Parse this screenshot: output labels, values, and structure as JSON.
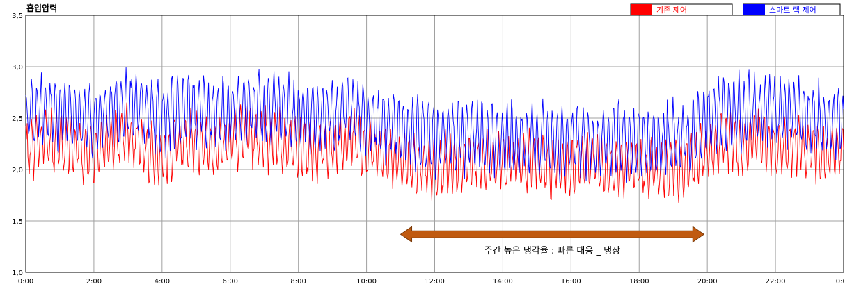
{
  "chart_data": {
    "type": "line",
    "title": "흡입압력",
    "xlabel": "",
    "ylabel": "",
    "x_unit": "hours",
    "xlim": [
      0,
      24
    ],
    "ylim": [
      1.0,
      3.5
    ],
    "y_ticks": [
      1.0,
      1.5,
      2.0,
      2.5,
      3.0,
      3.5
    ],
    "y_tick_labels": [
      "1,0",
      "1,5",
      "2,0",
      "2,5",
      "3,0",
      "3,5"
    ],
    "x_ticks": [
      0,
      2,
      4,
      6,
      8,
      10,
      12,
      14,
      16,
      18,
      20,
      22,
      24
    ],
    "x_tick_labels": [
      "0:00",
      "2:00",
      "4:00",
      "6:00",
      "8:00",
      "10:00",
      "12:00",
      "14:00",
      "16:00",
      "18:00",
      "20:00",
      "22:00",
      "0:00"
    ],
    "grid": true,
    "legend_position": "top-right",
    "series": [
      {
        "name": "기존 제어",
        "color": "#ff0000",
        "x": [
          0,
          0.5,
          1,
          1.5,
          2,
          2.5,
          3,
          3.5,
          4,
          4.5,
          5,
          5.5,
          6,
          6.5,
          7,
          7.5,
          8,
          8.5,
          9,
          9.5,
          10,
          10.5,
          11,
          11.5,
          12,
          12.5,
          13,
          13.5,
          14,
          14.5,
          15,
          15.5,
          16,
          16.5,
          17,
          17.5,
          18,
          18.5,
          19,
          19.5,
          20,
          20.5,
          21,
          21.5,
          22,
          22.5,
          23,
          23.5,
          24
        ],
        "values": [
          2.2,
          2.3,
          2.25,
          2.2,
          2.15,
          2.3,
          2.35,
          2.2,
          2.1,
          2.25,
          2.3,
          2.2,
          2.3,
          2.35,
          2.3,
          2.25,
          2.2,
          2.2,
          2.25,
          2.3,
          2.2,
          2.15,
          2.1,
          2.05,
          2.0,
          2.05,
          2.1,
          2.05,
          2.1,
          2.05,
          2.1,
          2.0,
          2.05,
          2.1,
          2.0,
          2.05,
          2.0,
          2.0,
          2.05,
          2.0,
          2.2,
          2.3,
          2.2,
          2.3,
          2.2,
          2.25,
          2.2,
          2.15,
          2.2
        ]
      },
      {
        "name": "스마트 랙 제어",
        "color": "#0000ff",
        "x": [
          0,
          0.5,
          1,
          1.5,
          2,
          2.5,
          3,
          3.5,
          4,
          4.5,
          5,
          5.5,
          6,
          6.5,
          7,
          7.5,
          8,
          8.5,
          9,
          9.5,
          10,
          10.5,
          11,
          11.5,
          12,
          12.5,
          13,
          13.5,
          14,
          14.5,
          15,
          15.5,
          16,
          16.5,
          17,
          17.5,
          18,
          18.5,
          19,
          19.5,
          20,
          20.5,
          21,
          21.5,
          22,
          22.5,
          23,
          23.5,
          24
        ],
        "values": [
          2.5,
          2.6,
          2.55,
          2.5,
          2.5,
          2.6,
          2.65,
          2.6,
          2.5,
          2.55,
          2.6,
          2.5,
          2.55,
          2.6,
          2.55,
          2.6,
          2.5,
          2.55,
          2.55,
          2.6,
          2.5,
          2.45,
          2.4,
          2.35,
          2.3,
          2.3,
          2.35,
          2.3,
          2.3,
          2.25,
          2.3,
          2.25,
          2.3,
          2.3,
          2.25,
          2.3,
          2.25,
          2.25,
          2.3,
          2.3,
          2.5,
          2.6,
          2.55,
          2.6,
          2.55,
          2.55,
          2.5,
          2.45,
          2.5
        ]
      }
    ],
    "annotation": {
      "text": "주간 높은 냉각율 : 빠른 대응 _ 냉장",
      "x_start": 11.0,
      "x_end": 19.9,
      "y": 1.37,
      "arrow_color": "#c05a10"
    }
  }
}
